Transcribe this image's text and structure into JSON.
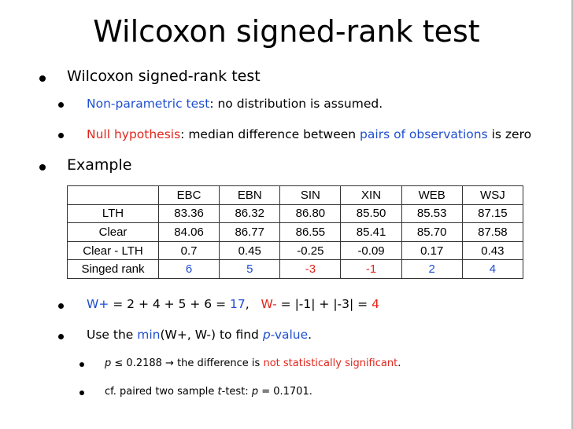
{
  "title": "Wilcoxon signed-rank test",
  "bullets": [
    [
      "Wilcoxon signed-rank test"
    ],
    [
      "Non-parametric test",
      ": no distribution is assumed."
    ],
    [
      "Null hypothesis",
      ": median difference between ",
      "pairs of observations",
      " is zero"
    ],
    [
      "Example"
    ],
    [
      "W+",
      " = 2 + 4 + 5 + 6 = ",
      "17",
      ",   ",
      "W-",
      " = |-1| + |-3| = ",
      "4"
    ],
    [
      "Use the ",
      "min",
      "(W+, W-) to find ",
      "p",
      "-value",
      "."
    ],
    [
      "p",
      " ≤ 0.2188 → the difference is ",
      "not statistically significant",
      "."
    ],
    [
      "cf. paired two sample ",
      "t",
      "-test: ",
      "p",
      " = 0.1701."
    ]
  ],
  "table": {
    "header": [
      "EBC",
      "EBN",
      "SIN",
      "XIN",
      "WEB",
      "WSJ"
    ],
    "rows": [
      [
        "LTH",
        "83.36",
        "86.32",
        "86.80",
        "85.50",
        "85.53",
        "87.15"
      ],
      [
        "Clear",
        "84.06",
        "86.77",
        "86.55",
        "85.41",
        "85.70",
        "87.58"
      ],
      [
        "Clear - LTH",
        "0.7",
        "0.45",
        "-0.25",
        "-0.09",
        "0.17",
        "0.43"
      ],
      [
        "Singed rank",
        "6",
        "5",
        "-3",
        "-1",
        "2",
        "4"
      ]
    ]
  }
}
